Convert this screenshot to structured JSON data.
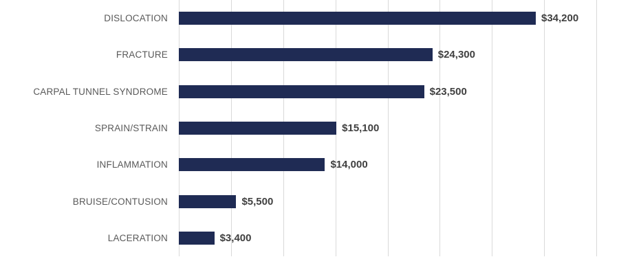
{
  "chart_data": {
    "type": "bar",
    "orientation": "horizontal",
    "title": "",
    "categories": [
      "DISLOCATION",
      "FRACTURE",
      "CARPAL TUNNEL SYNDROME",
      "SPRAIN/STRAIN",
      "INFLAMMATION",
      "BRUISE/CONTUSION",
      "LACERATION"
    ],
    "values": [
      34200,
      24300,
      23500,
      15100,
      14000,
      5500,
      3400
    ],
    "value_labels": [
      "$34,200",
      "$24,300",
      "$23,500",
      "$15,100",
      "$14,000",
      "$5,500",
      "$3,400"
    ],
    "xlim": [
      0,
      40000
    ],
    "gridline_step": 5000,
    "grid": true,
    "legend": "none",
    "axis_tick_labels_shown": false,
    "colors": {
      "bar": "#1f2b54",
      "gridline": "#d9d9d9",
      "category_label": "#595959",
      "value_label": "#404040",
      "background": "#ffffff"
    }
  }
}
